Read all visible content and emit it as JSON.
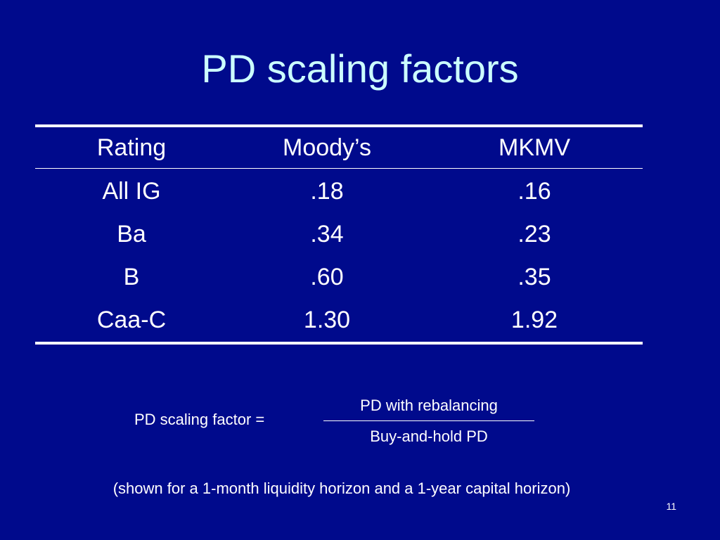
{
  "slide": {
    "title": "PD scaling factors",
    "page_number": "11",
    "footnote": "(shown for a 1-month liquidity horizon and a 1-year capital horizon)"
  },
  "table": {
    "headers": [
      "Rating",
      "Moody’s",
      "MKMV"
    ],
    "rows": [
      [
        "All IG",
        ".18",
        ".16"
      ],
      [
        "Ba",
        ".34",
        ".23"
      ],
      [
        "B",
        ".60",
        ".35"
      ],
      [
        "Caa-C",
        "1.30",
        "1.92"
      ]
    ]
  },
  "formula": {
    "label": "PD scaling factor =",
    "numerator": "PD with rebalancing",
    "denominator": "Buy-and-hold PD"
  },
  "colors": {
    "background": "#000a8c",
    "title": "#ccffff",
    "text": "#ffffff"
  }
}
